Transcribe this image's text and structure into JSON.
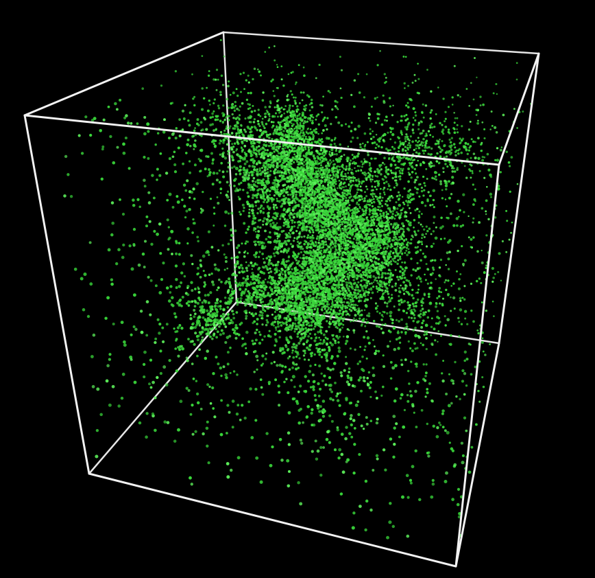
{
  "scene": {
    "description_visible_text": "",
    "colors": {
      "background": "#000000",
      "particle": "#39d63a",
      "particle_bright": "#5cf05a",
      "cube_edge": "#f2f2f2"
    },
    "particle_count": 9000
  }
}
